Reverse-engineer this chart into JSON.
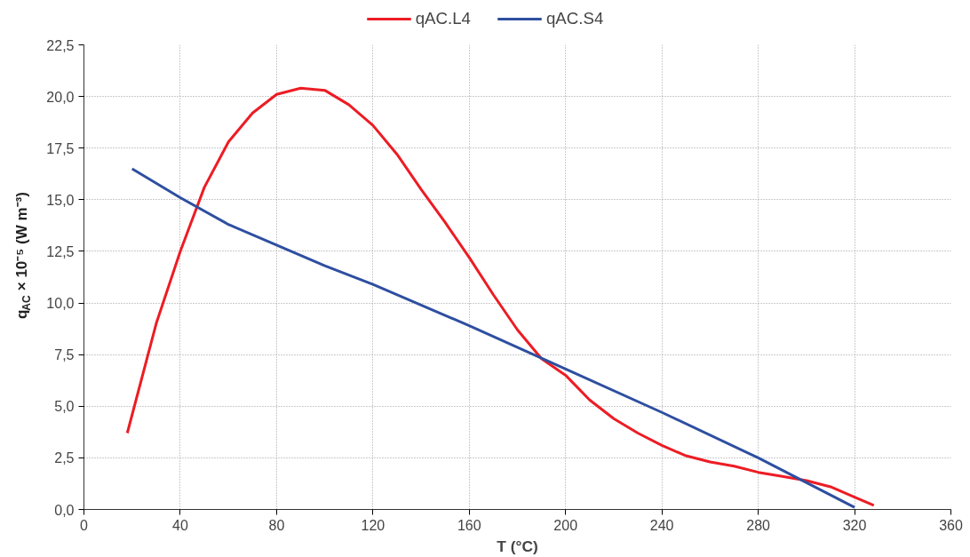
{
  "chart_data": {
    "type": "line",
    "xlabel": "T (°C)",
    "ylabel": "q$_{AC}$ × 10⁻⁵ (W m⁻³)",
    "xlim": [
      0,
      360
    ],
    "xticks": [
      0,
      40,
      80,
      120,
      160,
      200,
      240,
      280,
      320,
      360
    ],
    "ylim": [
      0,
      22.5
    ],
    "yticks": [
      {
        "value": 0,
        "label": "0,0"
      },
      {
        "value": 2.5,
        "label": "2,5"
      },
      {
        "value": 5,
        "label": "5,0"
      },
      {
        "value": 7.5,
        "label": "7,5"
      },
      {
        "value": 10,
        "label": "10,0"
      },
      {
        "value": 12.5,
        "label": "12,5"
      },
      {
        "value": 15,
        "label": "15,0"
      },
      {
        "value": 17.5,
        "label": "17,5"
      },
      {
        "value": 20,
        "label": "20,0"
      },
      {
        "value": 22.5,
        "label": "22,5"
      }
    ],
    "grid": true,
    "legend": "top",
    "marker": "none",
    "line_style": "solid",
    "series": [
      {
        "name": "qAC.L4",
        "color": "#ed1c24",
        "x": [
          18,
          30,
          40,
          50,
          60,
          70,
          80,
          90,
          100,
          110,
          120,
          130,
          140,
          150,
          160,
          170,
          180,
          190,
          200,
          210,
          220,
          230,
          240,
          250,
          260,
          270,
          280,
          290,
          300,
          310,
          320,
          328
        ],
        "values": [
          3.7,
          9.0,
          12.5,
          15.6,
          17.8,
          19.2,
          20.1,
          20.4,
          20.3,
          19.6,
          18.6,
          17.2,
          15.5,
          13.9,
          12.2,
          10.4,
          8.7,
          7.3,
          6.5,
          5.3,
          4.4,
          3.7,
          3.1,
          2.6,
          2.3,
          2.1,
          1.8,
          1.6,
          1.4,
          1.1,
          0.6,
          0.2
        ]
      },
      {
        "name": "qAC.S4",
        "color": "#2e4fa0",
        "x": [
          20,
          40,
          60,
          80,
          100,
          120,
          160,
          200,
          240,
          280,
          320
        ],
        "values": [
          16.5,
          15.1,
          13.8,
          12.8,
          11.8,
          10.9,
          8.9,
          6.8,
          4.7,
          2.5,
          0.1
        ]
      }
    ]
  }
}
